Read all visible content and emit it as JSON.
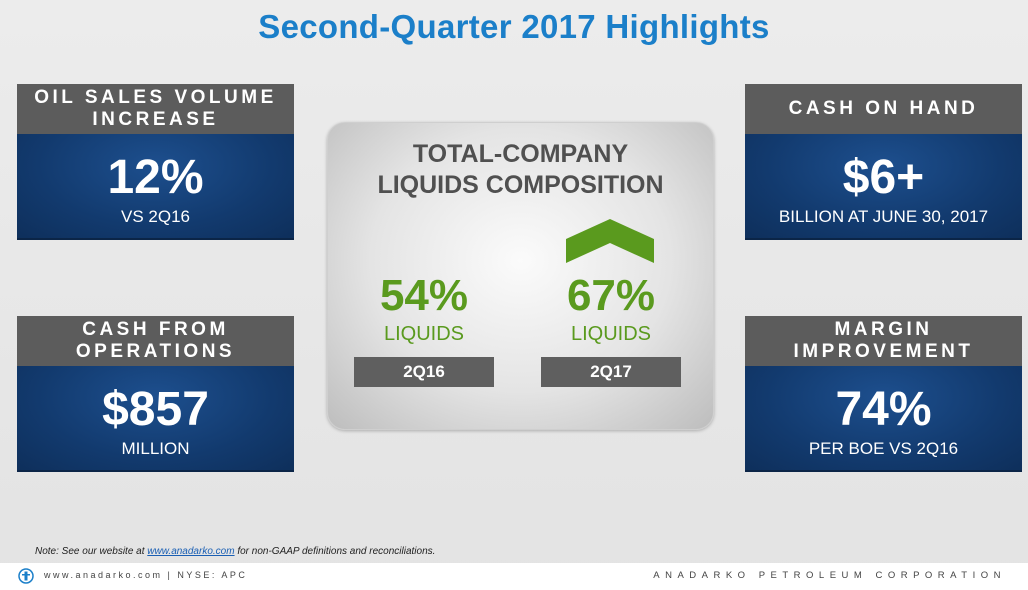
{
  "title": "Second-Quarter 2017 Highlights",
  "cards": {
    "oil": {
      "header": "OIL SALES VOLUME INCREASE",
      "value": "12%",
      "caption": "VS 2Q16"
    },
    "cash": {
      "header": "CASH ON HAND",
      "value": "$6+",
      "caption": "BILLION AT JUNE 30, 2017"
    },
    "cfo": {
      "header": "CASH FROM OPERATIONS",
      "value": "$857",
      "caption": "MILLION"
    },
    "margin": {
      "header": "MARGIN IMPROVEMENT",
      "value": "74%",
      "caption": "PER BOE VS 2Q16"
    }
  },
  "center": {
    "title_line1": "TOTAL-COMPANY",
    "title_line2": "LIQUIDS COMPOSITION",
    "left": {
      "value": "54%",
      "label": "LIQUIDS",
      "period": "2Q16"
    },
    "right": {
      "value": "67%",
      "label": "LIQUIDS",
      "period": "2Q17"
    },
    "arrow_icon": "chevron-up-icon"
  },
  "note": {
    "prefix": "Note: See our website at ",
    "link": "www.anadarko.com",
    "suffix": " for non-GAAP definitions and reconciliations."
  },
  "footer": {
    "left": "www.anadarko.com | NYSE: APC",
    "right": "ANADARKO PETROLEUM CORPORATION"
  },
  "colors": {
    "title": "#1b7fc9",
    "card_header": "#5c5c5c",
    "card_body": "#123a6e",
    "green": "#5a9a1e",
    "period_bar": "#5f5f5f"
  }
}
